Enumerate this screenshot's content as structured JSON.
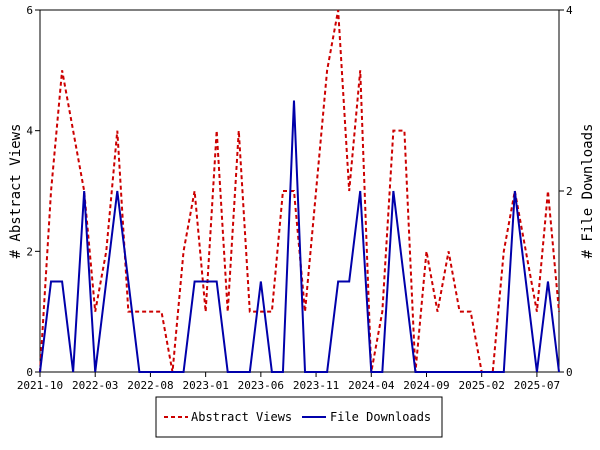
{
  "chart_data": {
    "type": "line",
    "title": "",
    "xlabel": "",
    "ylabel_left": "# Abstract Views",
    "ylabel_right": "# File Downloads",
    "ylim_left": [
      0,
      6
    ],
    "ylim_right": [
      0,
      4
    ],
    "yticks_left": [
      "0",
      "2",
      "4",
      "6"
    ],
    "yticks_right": [
      "0",
      "2",
      "4"
    ],
    "x_tick_labels": [
      "2021-10",
      "2022-03",
      "2022-08",
      "2023-01",
      "2023-06",
      "2023-11",
      "2024-04",
      "2024-09",
      "2025-02",
      "2025-07"
    ],
    "grid": false,
    "legend_position": "bottom-center",
    "series": [
      {
        "name": "Abstract Views",
        "axis": "left",
        "color": "#cc0000",
        "style": "dashed",
        "values": [
          0,
          3,
          5,
          4,
          3,
          1,
          2,
          4,
          1,
          1,
          1,
          1,
          0,
          2,
          3,
          1,
          4,
          1,
          4,
          1,
          1,
          1,
          3,
          3,
          1,
          3,
          5,
          6,
          3,
          5,
          0,
          1,
          4,
          4,
          0,
          2,
          1,
          2,
          1,
          1,
          0,
          0,
          2,
          3,
          2,
          1,
          3,
          1
        ]
      },
      {
        "name": "File Downloads",
        "axis": "right",
        "color": "#0000aa",
        "style": "solid",
        "values": [
          0,
          1,
          1,
          0,
          2,
          0,
          1,
          2,
          1,
          0,
          0,
          0,
          0,
          0,
          1,
          1,
          1,
          0,
          0,
          0,
          1,
          0,
          0,
          3,
          0,
          0,
          0,
          1,
          1,
          2,
          0,
          0,
          2,
          1,
          0,
          0,
          0,
          0,
          0,
          0,
          0,
          0,
          0,
          2,
          1,
          0,
          1,
          0
        ]
      }
    ]
  }
}
